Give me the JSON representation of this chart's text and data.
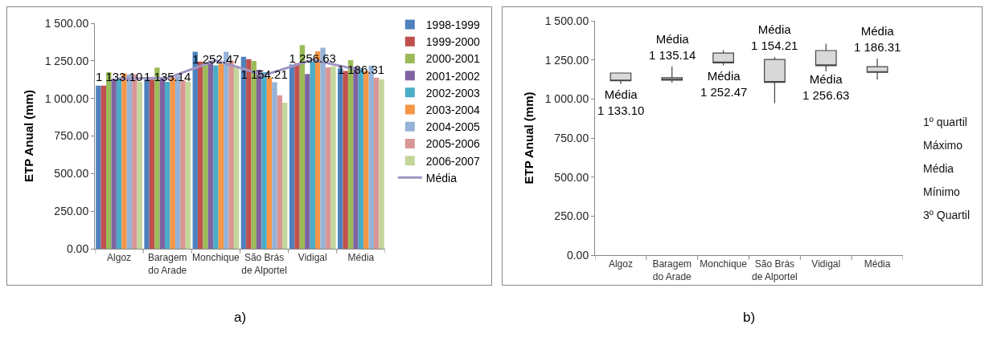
{
  "chart_data": [
    {
      "type": "bar",
      "categories": [
        "Algoz",
        "Baragem do Arade",
        "Monchique",
        "São Brás de Alportel",
        "Vidigal",
        "Média"
      ],
      "ylabel": "ETP Anual (mm)",
      "ylim": [
        0,
        1500
      ],
      "yticks": [
        {
          "value": 0,
          "label": "0.00"
        },
        {
          "value": 250,
          "label": "250.00"
        },
        {
          "value": 500,
          "label": "500.00"
        },
        {
          "value": 750,
          "label": "750.00"
        },
        {
          "value": 1000,
          "label": "1 000.00"
        },
        {
          "value": 1250,
          "label": "1 250.00"
        },
        {
          "value": 1500,
          "label": "1 500.00"
        }
      ],
      "legend": "right",
      "grid": false,
      "annotations": [
        "a)"
      ],
      "series": [
        {
          "name": "1998-1999",
          "color": "#4f81bd",
          "values": [
            1085,
            1125,
            1310,
            1277,
            1225,
            1200
          ]
        },
        {
          "name": "1999-2000",
          "color": "#c0504d",
          "values": [
            1085,
            1125,
            1245,
            1261,
            1235,
            1183
          ]
        },
        {
          "name": "2000-2001",
          "color": "#9bbb59",
          "values": [
            1175,
            1205,
            1240,
            1249,
            1355,
            1254
          ]
        },
        {
          "name": "2001-2002",
          "color": "#8064a2",
          "values": [
            1130,
            1130,
            1250,
            1190,
            1163,
            1209
          ]
        },
        {
          "name": "2002-2003",
          "color": "#4bacc6",
          "values": [
            1130,
            1110,
            1220,
            1175,
            1245,
            1200
          ]
        },
        {
          "name": "2003-2004",
          "color": "#f79646",
          "values": [
            1165,
            1140,
            1230,
            1140,
            1313,
            1183
          ]
        },
        {
          "name": "2004-2005",
          "color": "#95b3d7",
          "values": [
            1160,
            1150,
            1310,
            1108,
            1337,
            1218
          ]
        },
        {
          "name": "2005-2006",
          "color": "#d99694",
          "values": [
            1160,
            1120,
            1250,
            1021,
            1206,
            1138
          ]
        },
        {
          "name": "2006-2007",
          "color": "#c3d69b",
          "values": [
            1110,
            1110,
            1215,
            971,
            1213,
            1126
          ]
        },
        {
          "name": "Média",
          "type": "line",
          "color": "#a095c4",
          "values": [
            1133.1,
            1135.14,
            1252.47,
            1154.21,
            1256.63,
            1186.31
          ],
          "value_labels": [
            "1 133.10",
            "1 135.14",
            "1 252.47",
            "1 154.21",
            "1 256.63",
            "1 186.31"
          ]
        }
      ]
    },
    {
      "type": "box",
      "categories": [
        "Algoz",
        "Baragem do Arade",
        "Monchique",
        "São Brás de Alportel",
        "Vidigal",
        "Média"
      ],
      "ylabel": "ETP Anual (mm)",
      "ylim": [
        0,
        1500
      ],
      "yticks": [
        {
          "value": 0,
          "label": "0.00"
        },
        {
          "value": 250,
          "label": "250.00"
        },
        {
          "value": 500,
          "label": "500.00"
        },
        {
          "value": 750,
          "label": "750.00"
        },
        {
          "value": 1000,
          "label": "1 000.00"
        },
        {
          "value": 1250,
          "label": "1 250.00"
        },
        {
          "value": 1500,
          "label": "1 500.00"
        }
      ],
      "grid": false,
      "legend": false,
      "series": [
        {
          "color": "#d9d9d9",
          "boxes": [
            {
              "low": 1096,
              "q1": 1116,
              "q3": 1166,
              "high": 1168
            },
            {
              "low": 1104,
              "q1": 1120,
              "q3": 1136,
              "high": 1209
            },
            {
              "low": 1215,
              "q1": 1231,
              "q3": 1294,
              "high": 1312
            },
            {
              "low": 974,
              "q1": 1106,
              "q3": 1253,
              "high": 1268
            },
            {
              "low": 1176,
              "q1": 1213,
              "q3": 1310,
              "high": 1354
            },
            {
              "low": 1124,
              "q1": 1170,
              "q3": 1207,
              "high": 1259
            }
          ]
        }
      ],
      "annotations": [
        "Média\n1 133.10",
        "Média\n1 135.14",
        "Média\n1 252.47",
        "Média\n1 154.21",
        "Média\n1 256.63",
        "Média\n1 186.31",
        "1º quartil",
        "Máximo",
        "Média",
        "Mínimo",
        "3º Quartil",
        "b)"
      ]
    }
  ]
}
